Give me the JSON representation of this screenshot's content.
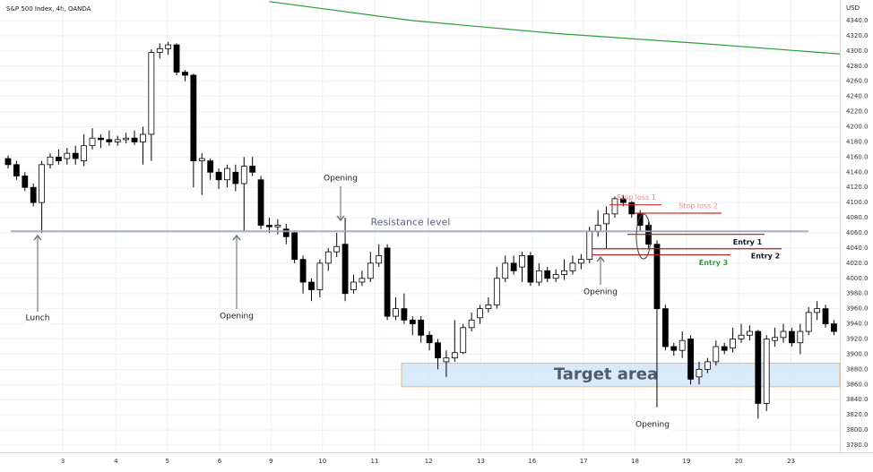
{
  "chart_data": {
    "type": "candlestick",
    "title": "S&P 500 Index, 4h, OANDA",
    "currency": "USD",
    "open": [
      4158,
      4150,
      4135,
      4120,
      4100,
      4150,
      4160,
      4158,
      4165,
      4155,
      4175,
      4185,
      4183,
      4180,
      4183,
      4185,
      4180,
      4190,
      4298,
      4303,
      4308,
      4272,
      4268,
      4155,
      4155,
      4140,
      4130,
      4140,
      4125,
      4148,
      4130,
      4070,
      4068,
      4065,
      4060,
      4025,
      3995,
      3985,
      4020,
      4035,
      4045,
      3985,
      3995,
      4000,
      4020,
      4040,
      3950,
      3960,
      3945,
      3945,
      3925,
      3915,
      3890,
      3895,
      3902,
      3935,
      3948,
      3960,
      3965,
      4000,
      4020,
      4015,
      4030,
      3995,
      4010,
      4000,
      4005,
      4010,
      4020,
      4025,
      4062,
      4072,
      4085,
      4105,
      4100,
      4085,
      4070,
      4045,
      3960,
      3910,
      3905,
      3920,
      3870,
      3880,
      3890,
      3910,
      3908,
      3920,
      3925,
      3930,
      3835,
      3918,
      3922,
      3930,
      3915,
      3930,
      3955,
      3960,
      3940
    ],
    "high": [
      4162,
      4155,
      4140,
      4125,
      4155,
      4165,
      4170,
      4172,
      4175,
      4190,
      4198,
      4190,
      4195,
      4188,
      4192,
      4195,
      4200,
      4302,
      4310,
      4312,
      4310,
      4275,
      4270,
      4165,
      4158,
      4145,
      4150,
      4150,
      4160,
      4160,
      4135,
      4080,
      4078,
      4072,
      4062,
      4030,
      4000,
      4025,
      4040,
      4060,
      4080,
      4005,
      4010,
      4035,
      4045,
      4045,
      3975,
      3980,
      3950,
      3950,
      3930,
      3920,
      3905,
      3945,
      3940,
      3955,
      3965,
      3975,
      4015,
      4030,
      4030,
      4035,
      4035,
      4020,
      4015,
      4012,
      4025,
      4030,
      4032,
      4068,
      4090,
      4095,
      4108,
      4110,
      4102,
      4090,
      4075,
      4050,
      3965,
      3915,
      3930,
      3925,
      3890,
      3895,
      3918,
      3915,
      3935,
      3940,
      3938,
      3932,
      3925,
      3935,
      3940,
      3935,
      3940,
      3962,
      3970,
      3965,
      3945
    ],
    "low": [
      4145,
      4130,
      4115,
      4095,
      4060,
      4145,
      4150,
      4150,
      4150,
      4148,
      4170,
      4172,
      4175,
      4175,
      4178,
      4176,
      4150,
      4155,
      4290,
      4295,
      4268,
      4260,
      4120,
      4110,
      4130,
      4118,
      4120,
      4115,
      4062,
      4135,
      4065,
      4060,
      4058,
      4045,
      4020,
      3980,
      3970,
      3975,
      4010,
      4028,
      3970,
      3980,
      3990,
      3995,
      4015,
      3945,
      3945,
      3940,
      3925,
      3915,
      3905,
      3880,
      3870,
      3890,
      3900,
      3930,
      3940,
      3955,
      3960,
      3995,
      4005,
      3995,
      3990,
      3990,
      3995,
      3995,
      3998,
      4005,
      4012,
      4020,
      4055,
      4040,
      4080,
      4095,
      4080,
      4062,
      4040,
      3830,
      3905,
      3898,
      3895,
      3860,
      3860,
      3875,
      3885,
      3900,
      3902,
      3915,
      3918,
      3815,
      3825,
      3910,
      3915,
      3910,
      3900,
      3925,
      3945,
      3935,
      3925
    ],
    "close": [
      4150,
      4135,
      4120,
      4100,
      4150,
      4160,
      4155,
      4165,
      4158,
      4175,
      4185,
      4183,
      4180,
      4183,
      4185,
      4180,
      4190,
      4298,
      4303,
      4308,
      4272,
      4268,
      4155,
      4158,
      4140,
      4130,
      4145,
      4125,
      4148,
      4140,
      4070,
      4068,
      4070,
      4055,
      4025,
      3995,
      3985,
      4020,
      4035,
      4042,
      3980,
      3995,
      4000,
      4020,
      4030,
      3950,
      3960,
      3945,
      3940,
      3925,
      3915,
      3895,
      3895,
      3902,
      3935,
      3945,
      3960,
      3965,
      4000,
      4020,
      4010,
      4030,
      3995,
      4010,
      4000,
      4005,
      4010,
      4020,
      4025,
      4062,
      4070,
      4085,
      4105,
      4100,
      4085,
      4070,
      4045,
      3960,
      3910,
      3905,
      3918,
      3867,
      3880,
      3890,
      3910,
      3905,
      3920,
      3925,
      3930,
      3835,
      3920,
      3922,
      3930,
      3915,
      3930,
      3955,
      3960,
      3940,
      3930
    ],
    "ma": {
      "color": "#2e9e3e",
      "x": [
        31,
        48,
        65,
        82,
        98.7
      ],
      "values": [
        4365,
        4340,
        4323,
        4310,
        4296
      ]
    },
    "xlim": [
      -0.957,
      98.7
    ],
    "xticks": [
      {
        "value": 6.5,
        "label": "3"
      },
      {
        "value": 12.8,
        "label": "4"
      },
      {
        "value": 18.9,
        "label": "5"
      },
      {
        "value": 25.1,
        "label": "6"
      },
      {
        "value": 31.2,
        "label": "9"
      },
      {
        "value": 37.3,
        "label": "10"
      },
      {
        "value": 43.5,
        "label": "11"
      },
      {
        "value": 49.9,
        "label": "12"
      },
      {
        "value": 56.1,
        "label": "13"
      },
      {
        "value": 62.2,
        "label": "16"
      },
      {
        "value": 68.3,
        "label": "17"
      },
      {
        "value": 74.4,
        "label": "18"
      },
      {
        "value": 80.5,
        "label": "19"
      },
      {
        "value": 86.7,
        "label": "20"
      },
      {
        "value": 92.9,
        "label": "23"
      }
    ],
    "ylim": [
      3780,
      4340
    ],
    "yticks": [
      {
        "value": 3780,
        "label": "3780.0"
      },
      {
        "value": 3800,
        "label": "3800.0"
      },
      {
        "value": 3820,
        "label": "3820.0"
      },
      {
        "value": 3840,
        "label": "3840.0"
      },
      {
        "value": 3860,
        "label": "3860.0"
      },
      {
        "value": 3880,
        "label": "3880.0"
      },
      {
        "value": 3900,
        "label": "3900.0"
      },
      {
        "value": 3920,
        "label": "3920.0"
      },
      {
        "value": 3940,
        "label": "3940.0"
      },
      {
        "value": 3960,
        "label": "3960.0"
      },
      {
        "value": 3980,
        "label": "3980.0"
      },
      {
        "value": 4000,
        "label": "4000.0"
      },
      {
        "value": 4020,
        "label": "4020.0"
      },
      {
        "value": 4040,
        "label": "4040.0"
      },
      {
        "value": 4060,
        "label": "4060.0"
      },
      {
        "value": 4080,
        "label": "4080.0"
      },
      {
        "value": 4100,
        "label": "4100.0"
      },
      {
        "value": 4120,
        "label": "4120.0"
      },
      {
        "value": 4140,
        "label": "4140.0"
      },
      {
        "value": 4160,
        "label": "4160.0"
      },
      {
        "value": 4180,
        "label": "4180.0"
      },
      {
        "value": 4200,
        "label": "4200.0"
      },
      {
        "value": 4220,
        "label": "4220.0"
      },
      {
        "value": 4240,
        "label": "4240.0"
      },
      {
        "value": 4260,
        "label": "4260.0"
      },
      {
        "value": 4280,
        "label": "4280.0"
      },
      {
        "value": 4300,
        "label": "4300.0"
      },
      {
        "value": 4320,
        "label": "4320.0"
      },
      {
        "value": 4340,
        "label": "4340.0"
      }
    ],
    "grid": true,
    "levels": [
      {
        "label": "Resistance level",
        "value": 4062,
        "color": "#a3a6c4"
      },
      {
        "label": "Stop loss 1",
        "value": 4097,
        "color": "#d32f2f"
      },
      {
        "label": "Stop loss 2",
        "value": 4086,
        "color": "#d32f2f"
      },
      {
        "label": "Entry 1",
        "value": 4058,
        "color": "#b71c1c"
      },
      {
        "label": "Entry 2",
        "value": 4039,
        "color": "#b71c1c"
      },
      {
        "label": "Entry 3",
        "value": 4031,
        "color": "#b71c1c"
      }
    ],
    "target": {
      "label": "Target area",
      "low": 3857,
      "high": 3888,
      "color": "#d5e8f8"
    },
    "callouts": [
      "Lunch",
      "Opening",
      "Opening",
      "Opening",
      "Opening"
    ]
  }
}
